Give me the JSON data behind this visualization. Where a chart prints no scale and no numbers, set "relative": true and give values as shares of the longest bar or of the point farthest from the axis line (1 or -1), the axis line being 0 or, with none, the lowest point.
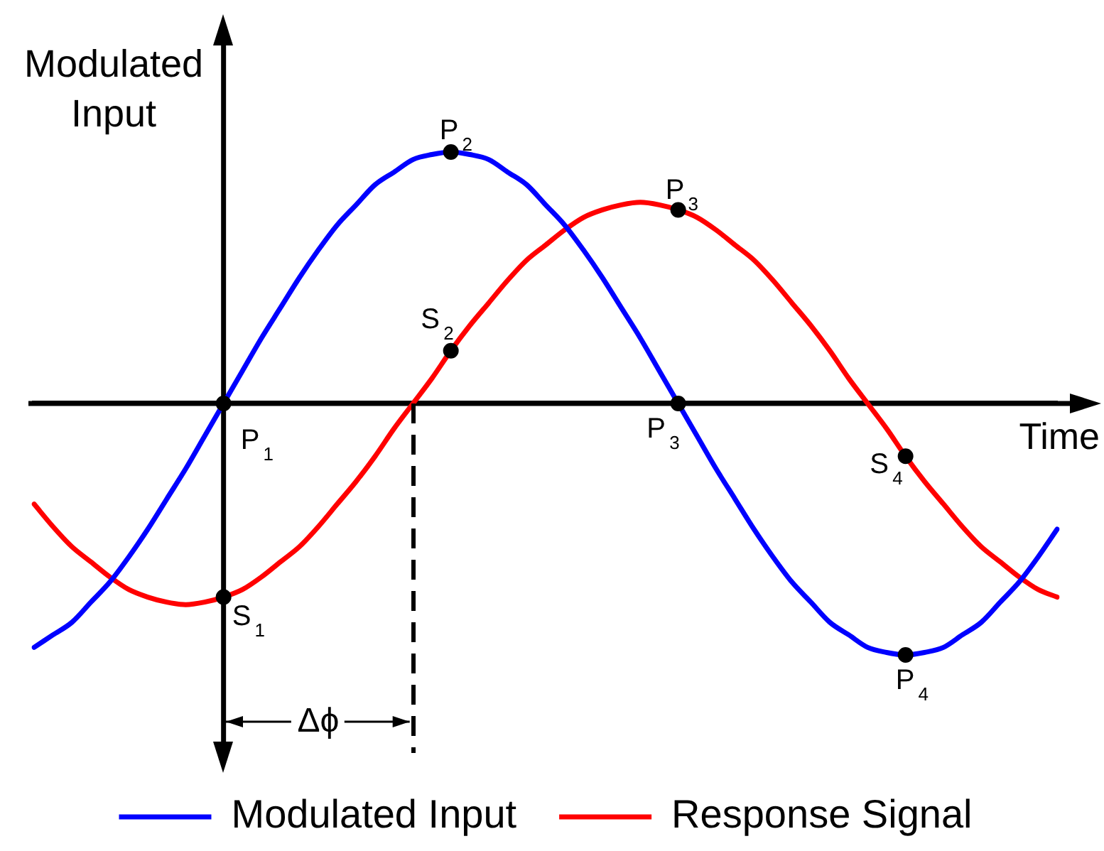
{
  "chart_data": {
    "type": "line",
    "relative": true,
    "xlabel": "Time",
    "ylabel": "Modulated Input",
    "legend": "bottom",
    "marker": "none",
    "annotations": [
      "P$_{1}$",
      "P$_{2}$",
      "P$_{3}$",
      "P$_{4}$",
      "S$_{1}$",
      "S$_{2}$",
      "P$_{3}$",
      "S$_{4}$",
      "Δϕ"
    ],
    "categories": [
      null,
      null,
      null,
      null,
      null,
      null,
      null,
      null,
      null,
      null,
      null,
      null,
      null,
      null,
      null,
      null,
      null,
      null,
      null,
      null,
      null,
      null,
      null,
      null,
      null,
      null,
      null,
      null,
      null,
      null,
      null,
      null,
      null,
      null,
      null,
      null,
      null,
      null,
      null,
      null,
      null,
      null,
      null,
      null,
      null,
      null,
      null,
      null,
      null,
      null,
      null,
      null,
      null,
      null,
      null
    ],
    "series": [
      {
        "name": "Modulated Input",
        "color": "#0000ff",
        "values": [
          -0.97,
          -0.92,
          -0.87,
          -0.79,
          -0.71,
          -0.61,
          -0.5,
          -0.38,
          -0.26,
          -0.13,
          0,
          0.13,
          0.26,
          0.38,
          0.5,
          0.61,
          0.71,
          0.79,
          0.87,
          0.92,
          0.97,
          0.99,
          1,
          0.99,
          0.97,
          0.92,
          0.87,
          0.79,
          0.71,
          0.61,
          0.5,
          0.38,
          0.26,
          0.13,
          0,
          -0.13,
          -0.26,
          -0.38,
          -0.5,
          -0.61,
          -0.71,
          -0.79,
          -0.87,
          -0.92,
          -0.97,
          -0.99,
          -1,
          -0.99,
          -0.97,
          -0.92,
          -0.87,
          -0.79,
          -0.71,
          -0.61,
          -0.5
        ]
      },
      {
        "name": "Response Signal",
        "color": "#ff0000",
        "values": [
          -0.4,
          -0.49,
          -0.57,
          -0.63,
          -0.69,
          -0.74,
          -0.77,
          -0.79,
          -0.8,
          -0.79,
          -0.77,
          -0.74,
          -0.69,
          -0.63,
          -0.57,
          -0.49,
          -0.4,
          -0.31,
          -0.21,
          -0.1,
          0,
          0.1,
          0.21,
          0.31,
          0.4,
          0.49,
          0.57,
          0.63,
          0.69,
          0.74,
          0.77,
          0.79,
          0.8,
          0.79,
          0.77,
          0.74,
          0.69,
          0.63,
          0.57,
          0.49,
          0.4,
          0.31,
          0.21,
          0.1,
          0,
          -0.1,
          -0.21,
          -0.31,
          -0.4,
          -0.49,
          -0.57,
          -0.63,
          -0.69,
          -0.74,
          -0.77
        ]
      },
      {
        "color": "#000000",
        "marker": "circle",
        "values": [
          null,
          null,
          null,
          null,
          null,
          null,
          null,
          null,
          null,
          null,
          0,
          null,
          null,
          null,
          null,
          null,
          null,
          null,
          null,
          null,
          null,
          null,
          1,
          null,
          null,
          null,
          null,
          null,
          null,
          null,
          null,
          null,
          null,
          null,
          0,
          null,
          null,
          null,
          null,
          null,
          null,
          null,
          null,
          null,
          null,
          null,
          -1,
          null,
          null,
          null,
          null,
          null,
          null,
          null,
          null
        ]
      },
      {
        "color": "#000000",
        "marker": "circle",
        "values": [
          null,
          null,
          null,
          null,
          null,
          null,
          null,
          null,
          null,
          null,
          -0.77,
          null,
          null,
          null,
          null,
          null,
          null,
          null,
          null,
          null,
          null,
          null,
          0.21,
          null,
          null,
          null,
          null,
          null,
          null,
          null,
          null,
          null,
          null,
          null,
          0.77,
          null,
          null,
          null,
          null,
          null,
          null,
          null,
          null,
          null,
          null,
          null,
          -0.21,
          null,
          null,
          null,
          null,
          null,
          null,
          null,
          null
        ]
      }
    ]
  }
}
